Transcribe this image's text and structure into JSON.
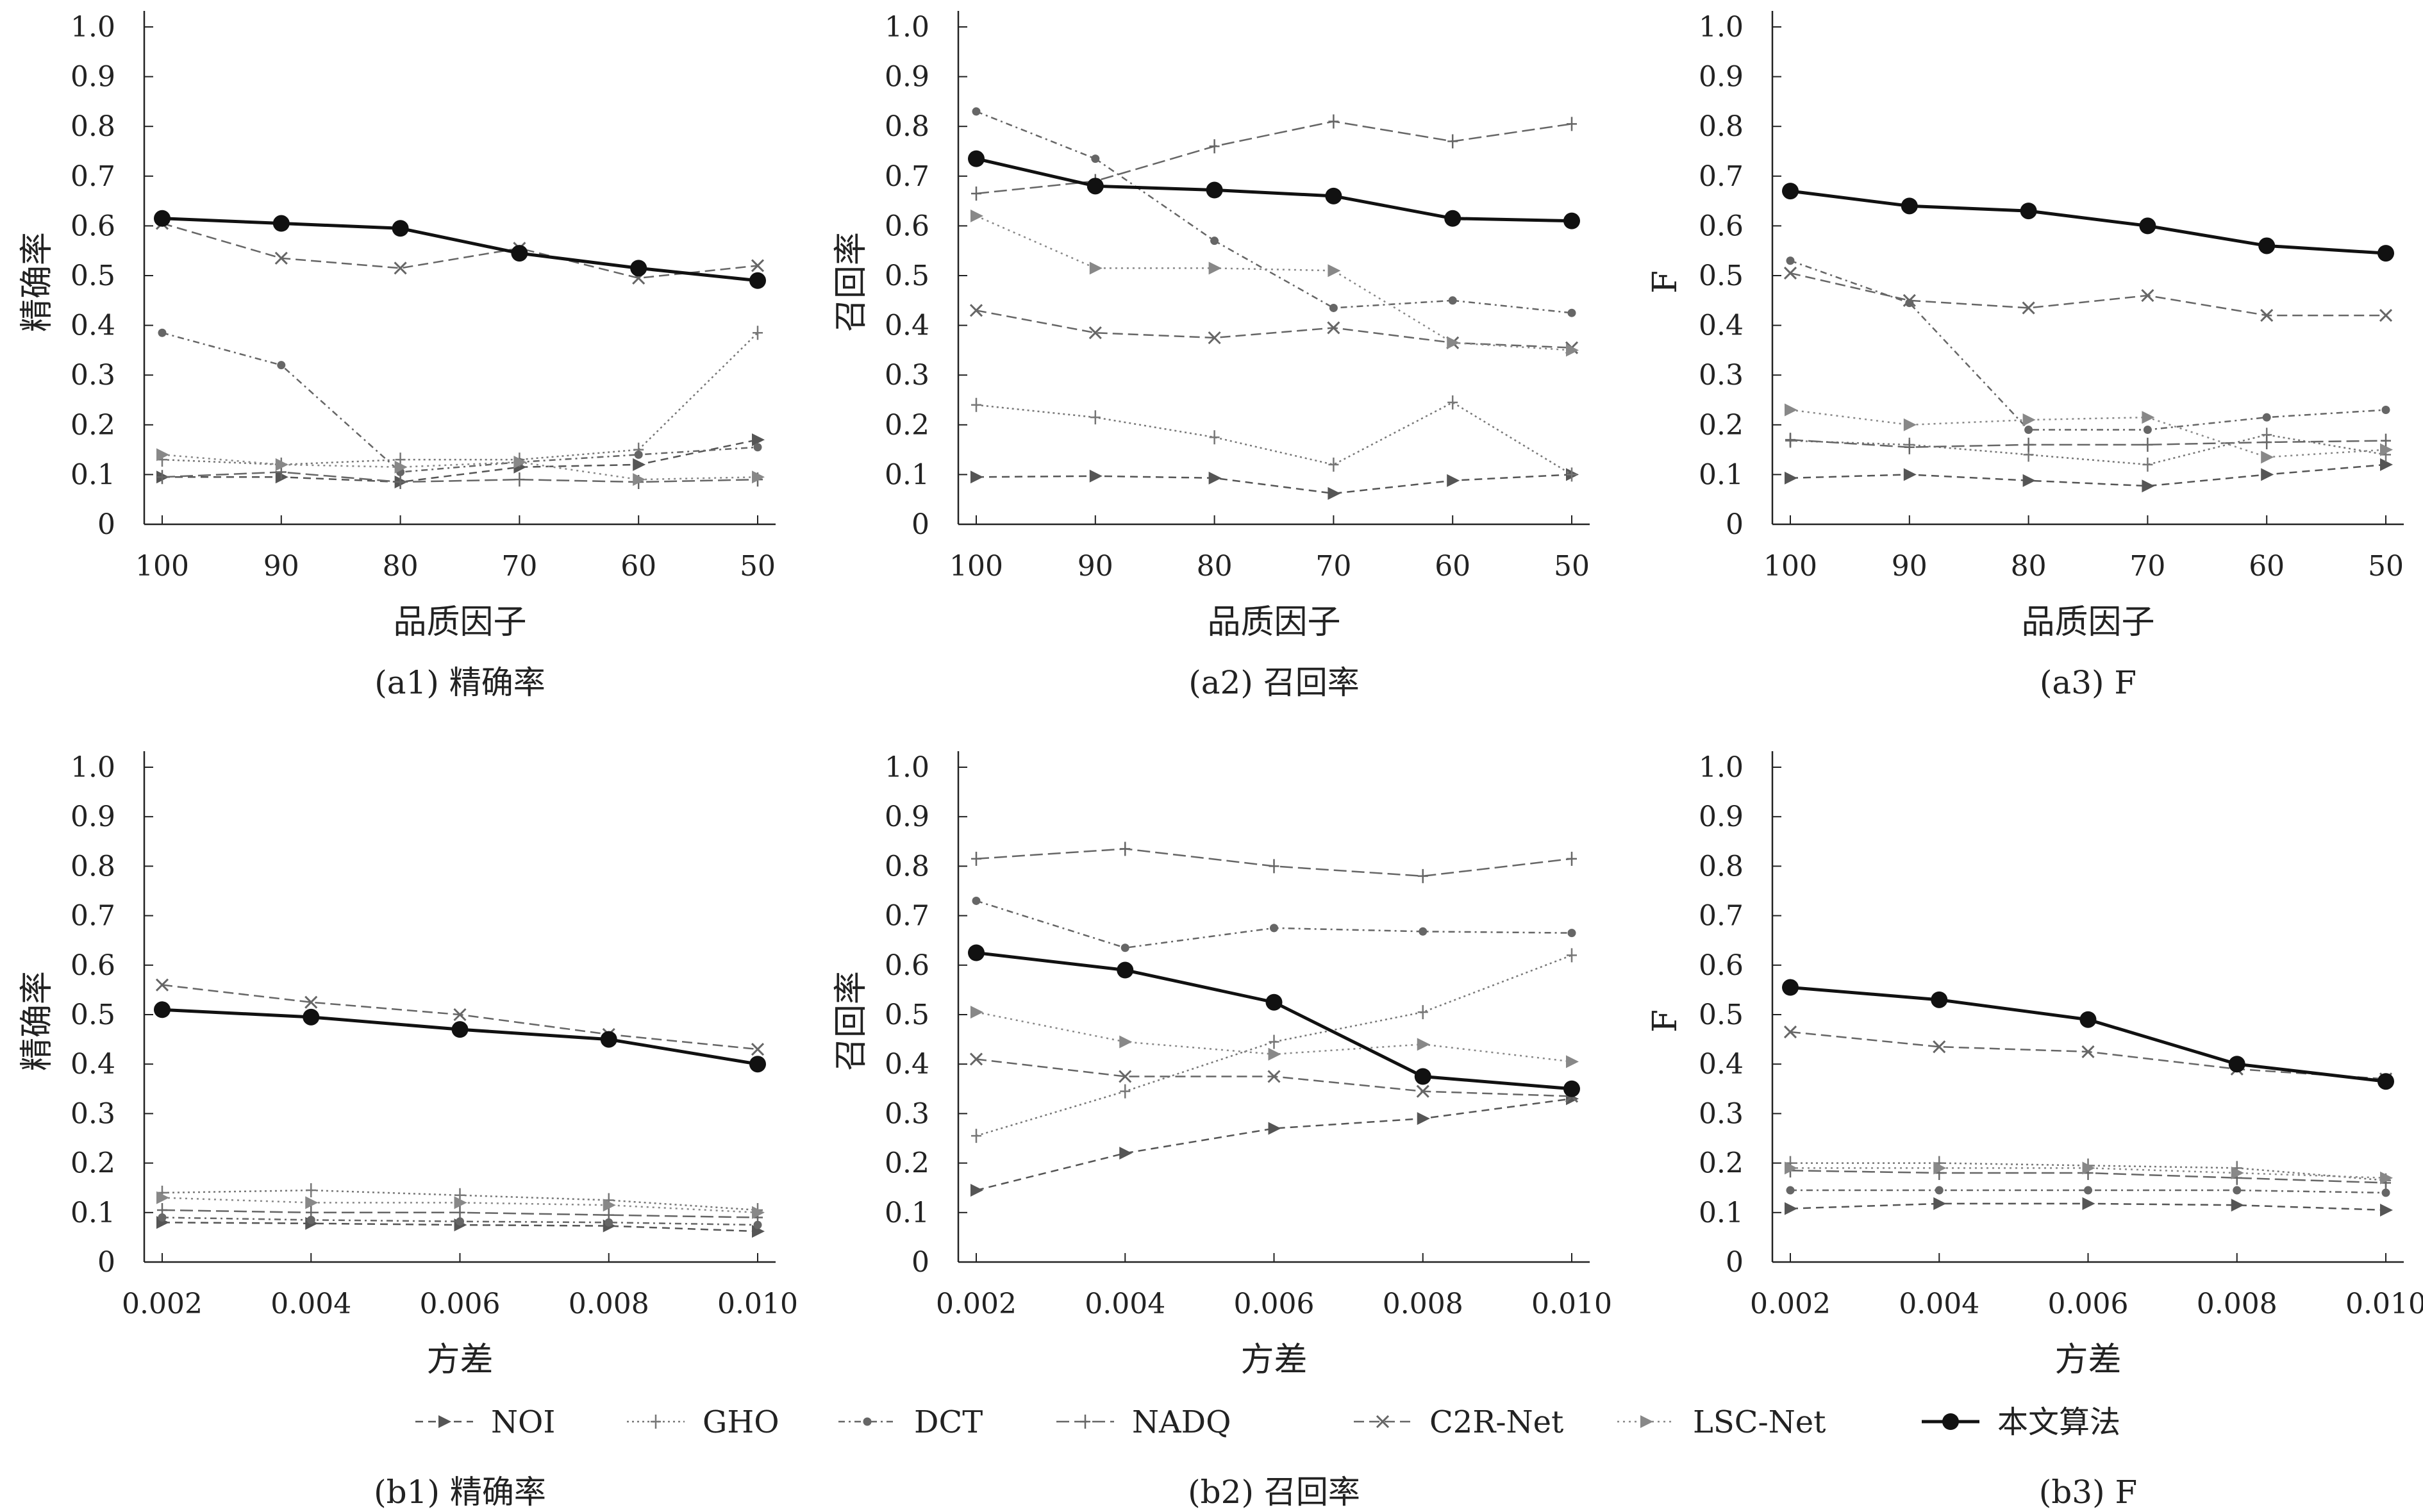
{
  "legend": [
    {
      "label": "NOI",
      "color": "#555555",
      "dash": "12,8",
      "marker": "tri",
      "width": 2.5
    },
    {
      "label": "GHO",
      "color": "#777777",
      "dash": "3,5",
      "marker": "plus",
      "width": 2.5
    },
    {
      "label": "DCT",
      "color": "#666666",
      "dash": "10,6,3,6",
      "marker": "dot",
      "width": 2.5
    },
    {
      "label": "NADQ",
      "color": "#666666",
      "dash": "20,8",
      "marker": "plus",
      "width": 2.5
    },
    {
      "label": "C2R-Net",
      "color": "#666666",
      "dash": "16,8",
      "marker": "x",
      "width": 2.5
    },
    {
      "label": "LSC-Net",
      "color": "#888888",
      "dash": "3,6",
      "marker": "tri",
      "width": 2.5
    },
    {
      "label": "本文算法",
      "color": "#111111",
      "dash": "",
      "marker": "bigdot",
      "width": 5
    }
  ],
  "chart_data": [
    {
      "id": "a1",
      "type": "line",
      "caption": "(a1) 精确率",
      "xlabel": "品质因子",
      "ylabel": "精确率",
      "x": [
        100,
        90,
        80,
        70,
        60,
        50
      ],
      "xticks": [
        "100",
        "90",
        "80",
        "70",
        "60",
        "50"
      ],
      "yticks": [
        "1.0",
        "0.9",
        "0.8",
        "0.7",
        "0.6",
        "0.5",
        "0.4",
        "0.3",
        "0.2",
        "0.1",
        "0"
      ],
      "ylim": [
        0,
        1
      ],
      "reverse_x": true,
      "series": [
        {
          "name": "NOI",
          "values": [
            0.095,
            0.095,
            0.085,
            0.115,
            0.12,
            0.17
          ]
        },
        {
          "name": "GHO",
          "values": [
            0.13,
            0.12,
            0.13,
            0.13,
            0.15,
            0.385
          ]
        },
        {
          "name": "DCT",
          "values": [
            0.385,
            0.32,
            0.105,
            0.125,
            0.14,
            0.155
          ]
        },
        {
          "name": "NADQ",
          "values": [
            0.095,
            0.105,
            0.085,
            0.09,
            0.085,
            0.09
          ]
        },
        {
          "name": "C2R-Net",
          "values": [
            0.605,
            0.535,
            0.515,
            0.555,
            0.495,
            0.52
          ]
        },
        {
          "name": "LSC-Net",
          "values": [
            0.14,
            0.12,
            0.115,
            0.125,
            0.09,
            0.095
          ]
        },
        {
          "name": "本文算法",
          "values": [
            0.615,
            0.605,
            0.595,
            0.545,
            0.515,
            0.49
          ]
        }
      ]
    },
    {
      "id": "a2",
      "type": "line",
      "caption": "(a2) 召回率",
      "xlabel": "品质因子",
      "ylabel": "召回率",
      "x": [
        100,
        90,
        80,
        70,
        60,
        50
      ],
      "xticks": [
        "100",
        "90",
        "80",
        "70",
        "60",
        "50"
      ],
      "yticks": [
        "1.0",
        "0.9",
        "0.8",
        "0.7",
        "0.6",
        "0.5",
        "0.4",
        "0.3",
        "0.2",
        "0.1",
        "0"
      ],
      "ylim": [
        0,
        1
      ],
      "reverse_x": true,
      "series": [
        {
          "name": "NOI",
          "values": [
            0.095,
            0.097,
            0.093,
            0.062,
            0.088,
            0.1
          ]
        },
        {
          "name": "GHO",
          "values": [
            0.24,
            0.215,
            0.175,
            0.12,
            0.245,
            0.1
          ]
        },
        {
          "name": "DCT",
          "values": [
            0.83,
            0.735,
            0.57,
            0.435,
            0.45,
            0.425
          ]
        },
        {
          "name": "NADQ",
          "values": [
            0.665,
            0.69,
            0.76,
            0.81,
            0.77,
            0.805
          ]
        },
        {
          "name": "C2R-Net",
          "values": [
            0.43,
            0.385,
            0.375,
            0.395,
            0.365,
            0.355
          ]
        },
        {
          "name": "LSC-Net",
          "values": [
            0.62,
            0.515,
            0.515,
            0.51,
            0.365,
            0.35
          ]
        },
        {
          "name": "本文算法",
          "values": [
            0.735,
            0.68,
            0.672,
            0.66,
            0.615,
            0.61
          ]
        }
      ]
    },
    {
      "id": "a3",
      "type": "line",
      "caption": "(a3) F",
      "xlabel": "品质因子",
      "ylabel": "F",
      "x": [
        100,
        90,
        80,
        70,
        60,
        50
      ],
      "xticks": [
        "100",
        "90",
        "80",
        "70",
        "60",
        "50"
      ],
      "yticks": [
        "1.0",
        "0.9",
        "0.8",
        "0.7",
        "0.6",
        "0.5",
        "0.4",
        "0.3",
        "0.2",
        "0.1",
        "0"
      ],
      "ylim": [
        0,
        1
      ],
      "reverse_x": true,
      "series": [
        {
          "name": "NOI",
          "values": [
            0.093,
            0.1,
            0.088,
            0.077,
            0.1,
            0.12
          ]
        },
        {
          "name": "GHO",
          "values": [
            0.168,
            0.16,
            0.14,
            0.12,
            0.18,
            0.14
          ]
        },
        {
          "name": "DCT",
          "values": [
            0.53,
            0.445,
            0.19,
            0.19,
            0.215,
            0.23
          ]
        },
        {
          "name": "NADQ",
          "values": [
            0.17,
            0.155,
            0.16,
            0.16,
            0.165,
            0.168
          ]
        },
        {
          "name": "C2R-Net",
          "values": [
            0.505,
            0.45,
            0.435,
            0.46,
            0.42,
            0.42
          ]
        },
        {
          "name": "LSC-Net",
          "values": [
            0.23,
            0.2,
            0.21,
            0.215,
            0.135,
            0.15
          ]
        },
        {
          "name": "本文算法",
          "values": [
            0.67,
            0.64,
            0.63,
            0.6,
            0.56,
            0.545
          ]
        }
      ]
    },
    {
      "id": "b1",
      "type": "line",
      "caption": "(b1) 精确率",
      "xlabel": "方差",
      "ylabel": "精确率",
      "x": [
        0.002,
        0.004,
        0.006,
        0.008,
        0.01
      ],
      "xticks": [
        "0.002",
        "0.004",
        "0.006",
        "0.008",
        "0.010"
      ],
      "yticks": [
        "1.0",
        "0.9",
        "0.8",
        "0.7",
        "0.6",
        "0.5",
        "0.4",
        "0.3",
        "0.2",
        "0.1",
        "0"
      ],
      "ylim": [
        0,
        1
      ],
      "reverse_x": false,
      "series": [
        {
          "name": "NOI",
          "values": [
            0.08,
            0.078,
            0.075,
            0.073,
            0.062
          ]
        },
        {
          "name": "GHO",
          "values": [
            0.14,
            0.145,
            0.135,
            0.125,
            0.105
          ]
        },
        {
          "name": "DCT",
          "values": [
            0.09,
            0.085,
            0.082,
            0.08,
            0.075
          ]
        },
        {
          "name": "NADQ",
          "values": [
            0.105,
            0.1,
            0.1,
            0.095,
            0.09
          ]
        },
        {
          "name": "C2R-Net",
          "values": [
            0.56,
            0.525,
            0.5,
            0.46,
            0.43
          ]
        },
        {
          "name": "LSC-Net",
          "values": [
            0.13,
            0.12,
            0.12,
            0.115,
            0.1
          ]
        },
        {
          "name": "本文算法",
          "values": [
            0.51,
            0.495,
            0.47,
            0.45,
            0.4
          ]
        }
      ]
    },
    {
      "id": "b2",
      "type": "line",
      "caption": "(b2) 召回率",
      "xlabel": "方差",
      "ylabel": "召回率",
      "x": [
        0.002,
        0.004,
        0.006,
        0.008,
        0.01
      ],
      "xticks": [
        "0.002",
        "0.004",
        "0.006",
        "0.008",
        "0.010"
      ],
      "yticks": [
        "1.0",
        "0.9",
        "0.8",
        "0.7",
        "0.6",
        "0.5",
        "0.4",
        "0.3",
        "0.2",
        "0.1",
        "0"
      ],
      "ylim": [
        0,
        1
      ],
      "reverse_x": false,
      "series": [
        {
          "name": "NOI",
          "values": [
            0.145,
            0.22,
            0.27,
            0.29,
            0.33
          ]
        },
        {
          "name": "GHO",
          "values": [
            0.255,
            0.345,
            0.445,
            0.505,
            0.62
          ]
        },
        {
          "name": "DCT",
          "values": [
            0.73,
            0.635,
            0.675,
            0.668,
            0.665
          ]
        },
        {
          "name": "NADQ",
          "values": [
            0.815,
            0.835,
            0.8,
            0.78,
            0.815
          ]
        },
        {
          "name": "C2R-Net",
          "values": [
            0.41,
            0.375,
            0.375,
            0.345,
            0.335
          ]
        },
        {
          "name": "LSC-Net",
          "values": [
            0.505,
            0.445,
            0.42,
            0.44,
            0.405
          ]
        },
        {
          "name": "本文算法",
          "values": [
            0.625,
            0.59,
            0.525,
            0.375,
            0.35
          ]
        }
      ]
    },
    {
      "id": "b3",
      "type": "line",
      "caption": "(b3) F",
      "xlabel": "方差",
      "ylabel": "F",
      "x": [
        0.002,
        0.004,
        0.006,
        0.008,
        0.01
      ],
      "xticks": [
        "0.002",
        "0.004",
        "0.006",
        "0.008",
        "0.010"
      ],
      "yticks": [
        "1.0",
        "0.9",
        "0.8",
        "0.7",
        "0.6",
        "0.5",
        "0.4",
        "0.3",
        "0.2",
        "0.1",
        "0"
      ],
      "ylim": [
        0,
        1
      ],
      "reverse_x": false,
      "series": [
        {
          "name": "NOI",
          "values": [
            0.108,
            0.118,
            0.118,
            0.115,
            0.105
          ]
        },
        {
          "name": "GHO",
          "values": [
            0.2,
            0.2,
            0.195,
            0.19,
            0.165
          ]
        },
        {
          "name": "DCT",
          "values": [
            0.145,
            0.145,
            0.145,
            0.145,
            0.14
          ]
        },
        {
          "name": "NADQ",
          "values": [
            0.185,
            0.18,
            0.18,
            0.17,
            0.16
          ]
        },
        {
          "name": "C2R-Net",
          "values": [
            0.465,
            0.435,
            0.425,
            0.39,
            0.37
          ]
        },
        {
          "name": "LSC-Net",
          "values": [
            0.19,
            0.19,
            0.19,
            0.18,
            0.17
          ]
        },
        {
          "name": "本文算法",
          "values": [
            0.555,
            0.53,
            0.49,
            0.4,
            0.365
          ]
        }
      ]
    }
  ]
}
